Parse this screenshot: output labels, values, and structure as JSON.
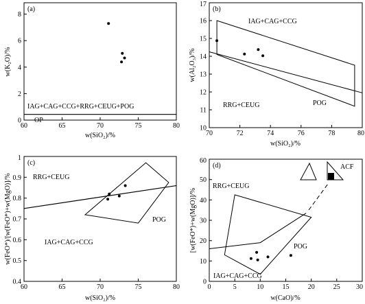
{
  "chart_data": [
    {
      "panel": "(a)",
      "type": "scatter",
      "xlabel": "w(SiO₂)/%",
      "ylabel": "w(K₂O)/%",
      "xlim": [
        60,
        80
      ],
      "ylim": [
        0,
        8.8
      ],
      "xticks": [
        60,
        65,
        70,
        75,
        80
      ],
      "yticks": [
        0,
        2,
        4,
        6,
        8
      ],
      "points": [
        [
          71.2,
          7.55
        ],
        [
          73.0,
          5.45
        ],
        [
          73.3,
          5.1
        ],
        [
          72.9,
          4.8
        ]
      ],
      "lines": [
        {
          "points": [
            [
              60,
              0.95
            ],
            [
              80,
              0.95
            ]
          ]
        }
      ],
      "regions": [
        "IAG+CAG+CCG+RRG+CEUG+POG",
        "OP"
      ]
    },
    {
      "panel": "(b)",
      "type": "scatter",
      "xlabel": "w(SiO₂)/%",
      "ylabel": "w(Al₂O₃)/%",
      "xlim": [
        70,
        80
      ],
      "ylim": [
        10,
        17
      ],
      "xticks": [
        70,
        72,
        74,
        76,
        78,
        80
      ],
      "yticks": [
        10,
        11,
        12,
        13,
        14,
        15,
        16,
        17
      ],
      "points": [
        [
          70.5,
          14.8
        ],
        [
          72.3,
          14.05
        ],
        [
          73.2,
          14.3
        ],
        [
          73.5,
          13.95
        ]
      ],
      "lines": [
        {
          "points": [
            [
              70,
              14.2
            ],
            [
              80,
              11.9
            ]
          ]
        }
      ],
      "polygons": [
        [
          [
            70.5,
            15.2
          ],
          [
            79.5,
            12.7
          ],
          [
            79.5,
            10.4
          ],
          [
            70.5,
            13.3
          ]
        ]
      ],
      "regions": [
        "IAG+CAG+CCG",
        "RRG+CEUG",
        "POG"
      ]
    },
    {
      "panel": "(c)",
      "type": "scatter",
      "xlabel": "w(SiO₂)/%",
      "ylabel": "w(FeO*)/[w(FeO*)+w(MgO)]/%",
      "xlim": [
        60,
        80
      ],
      "ylim": [
        0.4,
        1.0
      ],
      "xticks": [
        60,
        65,
        70,
        75,
        80
      ],
      "yticks": [
        0.4,
        0.5,
        0.6,
        0.7,
        0.8,
        0.9,
        1.0
      ],
      "points": [
        [
          71.0,
          0.835
        ],
        [
          71.2,
          0.86
        ],
        [
          72.5,
          0.85
        ],
        [
          73.3,
          0.9
        ]
      ],
      "lines": [
        {
          "points": [
            [
              60,
              0.79
            ],
            [
              80,
              0.9
            ]
          ]
        }
      ],
      "polygons": [
        [
          [
            76.0,
            0.97
          ],
          [
            79.0,
            0.875
          ],
          [
            75.0,
            0.745
          ],
          [
            68.0,
            0.785
          ]
        ]
      ],
      "regions": [
        "RRG+CEUG",
        "POG",
        "IAG+CAG+CCG"
      ]
    },
    {
      "panel": "(d)",
      "type": "scatter",
      "xlabel": "w(CaO)/%",
      "ylabel": "[w(FeO*)+w(MgO)]/%",
      "xlim": [
        0,
        30
      ],
      "ylim": [
        0,
        60
      ],
      "xticks": [
        0,
        5,
        10,
        15,
        20,
        25,
        30
      ],
      "yticks": [
        0,
        10,
        20,
        30,
        40,
        50,
        60
      ],
      "points": [
        [
          8.2,
          11.2
        ],
        [
          9.3,
          14.2
        ],
        [
          9.5,
          10.5
        ],
        [
          11.5,
          12.0
        ],
        [
          16.0,
          12.7
        ]
      ],
      "lines": [
        {
          "points": [
            [
              0,
              16.0
            ],
            [
              10.0,
              19.0
            ],
            [
              19.0,
              33.5
            ]
          ]
        }
      ],
      "polygons": [
        [
          [
            3.0,
            13.0
          ],
          [
            5.0,
            42.5
          ],
          [
            20.0,
            31.5
          ],
          [
            10.0,
            3.5
          ]
        ]
      ],
      "regions": [
        "RRG+CEUG",
        "POG",
        "IAG+CAG+CCG",
        "ACF"
      ]
    }
  ]
}
